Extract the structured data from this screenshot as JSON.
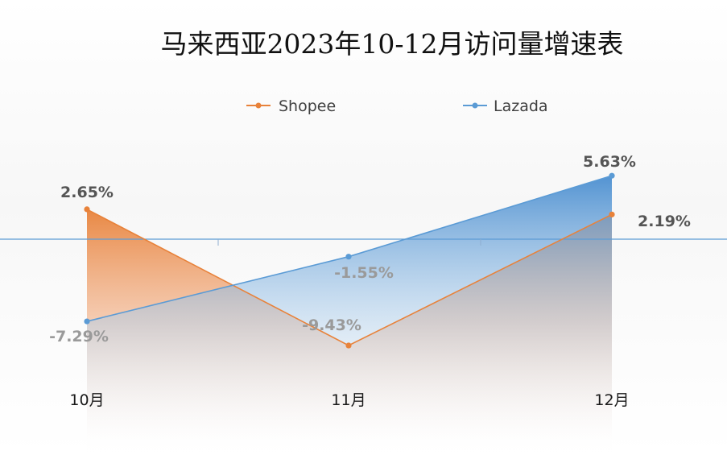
{
  "chart_data": {
    "type": "line",
    "title": "马来西亚2023年10-12月访问量增速表",
    "categories": [
      "10月",
      "11月",
      "12月"
    ],
    "y_unit": "%",
    "series": [
      {
        "name": "Shopee",
        "values": [
          2.65,
          -9.43,
          2.19
        ],
        "labels": [
          "2.65%",
          "-9.43%",
          "2.19%"
        ],
        "color": "#E8823A"
      },
      {
        "name": "Lazada",
        "values": [
          -7.29,
          -1.55,
          5.63
        ],
        "labels": [
          "-7.29%",
          "-1.55%",
          "5.63%"
        ],
        "color": "#5B9BD5"
      }
    ],
    "legend_position": "top",
    "grid": false,
    "ylim": [
      -10,
      7
    ]
  }
}
